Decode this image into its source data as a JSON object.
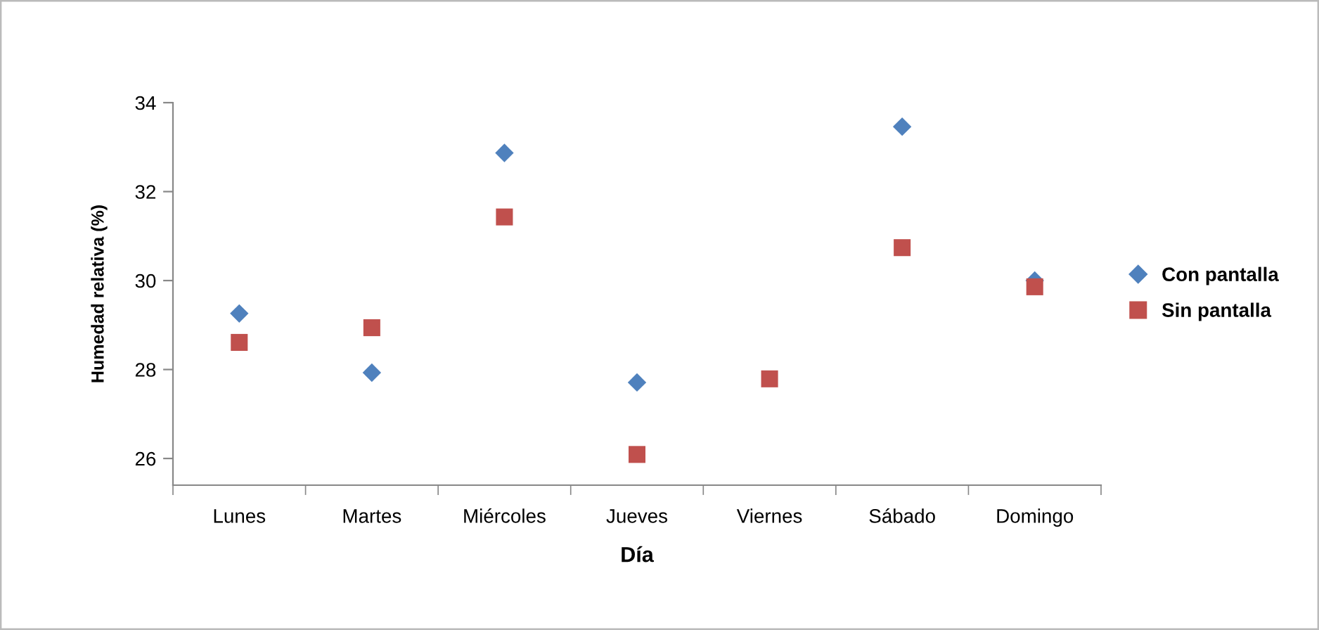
{
  "chart_data": {
    "type": "scatter",
    "xlabel": "Día",
    "ylabel": "Humedad relativa (%)",
    "categories": [
      "Lunes",
      "Martes",
      "Miércoles",
      "Jueves",
      "Viernes",
      "Sábado",
      "Domingo"
    ],
    "series": [
      {
        "name": "Con pantalla",
        "color": "#4f81bd",
        "marker": "diamond",
        "values": [
          29.26,
          27.93,
          32.87,
          27.71,
          null,
          33.46,
          30.0
        ]
      },
      {
        "name": "Sin pantalla",
        "color": "#c0504d",
        "marker": "square",
        "values": [
          28.61,
          28.94,
          31.43,
          26.09,
          27.79,
          30.74,
          29.86
        ]
      }
    ],
    "ylim": [
      25.4,
      34
    ],
    "yticks": [
      26,
      28,
      30,
      32,
      34
    ],
    "grid": false,
    "legend": "right"
  }
}
